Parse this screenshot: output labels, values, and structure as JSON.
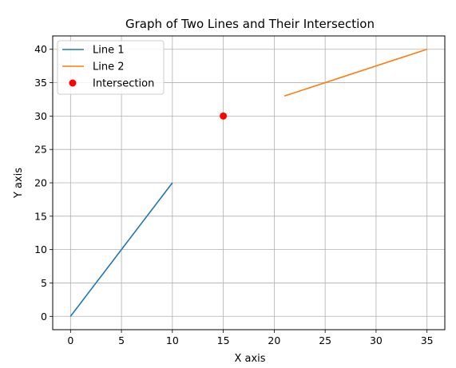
{
  "chart_data": {
    "type": "line",
    "title": "Graph of Two Lines and Their Intersection",
    "xlabel": "X axis",
    "ylabel": "Y axis",
    "xlim": [
      -1.75,
      36.75
    ],
    "ylim": [
      -2,
      42
    ],
    "xticks": [
      0,
      5,
      10,
      15,
      20,
      25,
      30,
      35
    ],
    "yticks": [
      0,
      5,
      10,
      15,
      20,
      25,
      30,
      35,
      40
    ],
    "grid": true,
    "legend_position": "top-left",
    "series": [
      {
        "name": "Line 1",
        "kind": "line",
        "color": "#1f77b4",
        "points": [
          [
            0,
            0
          ],
          [
            10,
            20
          ]
        ]
      },
      {
        "name": "Line 2",
        "kind": "line",
        "color": "#ff7f0e",
        "points": [
          [
            21,
            33
          ],
          [
            35,
            40
          ]
        ]
      },
      {
        "name": "Intersection",
        "kind": "scatter",
        "color": "#ff0000",
        "points": [
          [
            15,
            30
          ]
        ]
      }
    ]
  }
}
